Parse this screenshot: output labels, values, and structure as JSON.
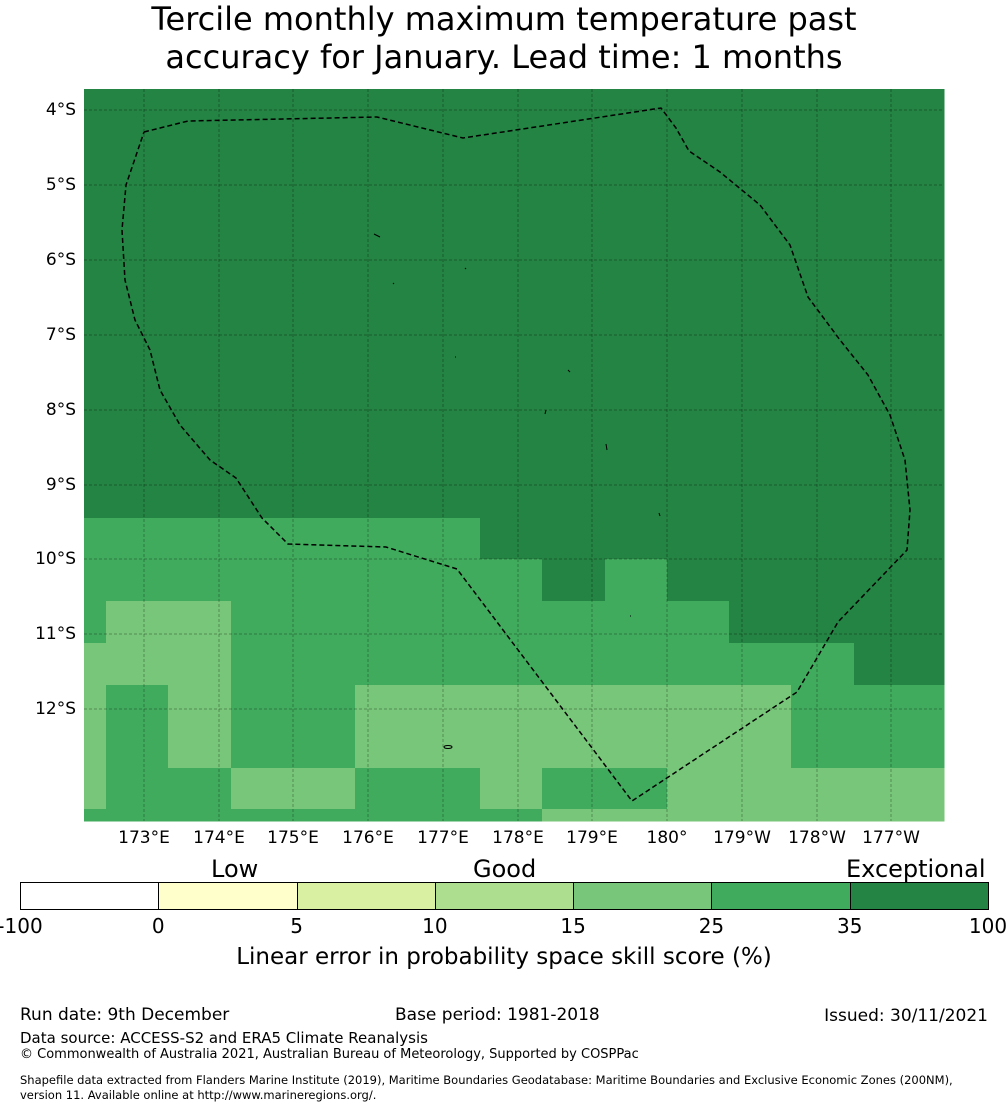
{
  "title_line1": "Tercile monthly maximum temperature past",
  "title_line2": "accuracy for January. Lead time: 1 months",
  "lat_labels": [
    "4°S",
    "5°S",
    "6°S",
    "7°S",
    "8°S",
    "9°S",
    "10°S",
    "11°S",
    "12°S"
  ],
  "lon_labels": [
    "173°E",
    "174°E",
    "175°E",
    "176°E",
    "177°E",
    "178°E",
    "179°E",
    "180°",
    "179°W",
    "178°W",
    "177°W"
  ],
  "skill_grid": {
    "codes": {
      "D": "#238443",
      "M": "#41ab5d",
      "L": "#78c679"
    },
    "rows": [
      "DDDDDDDDDDDDDDD",
      "MMMMMMMDDDDDDDD",
      "MMMMMMMMDMDDDDD",
      "MLLMMMMMMMMDDDD",
      "LLLMMMMMMMMMMDD",
      "LMLMMLLLLLLLMMM",
      "LMLMMLLLLLLLMMM",
      "LMMLLMMLMMLLLLL",
      "MMMMMMMMLLLLLLL"
    ]
  },
  "legend": {
    "categories": [
      "Low",
      "Good",
      "Exceptional"
    ],
    "colors": [
      "#ffffff",
      "#ffffcc",
      "#d9f0a3",
      "#addd8e",
      "#78c679",
      "#41ab5d",
      "#238443"
    ],
    "ticks": [
      "-100",
      "0",
      "5",
      "10",
      "15",
      "25",
      "35",
      "100"
    ],
    "title": "Linear error in probability space skill score (%)"
  },
  "footer": {
    "run_date": "Run date: 9th December",
    "base_period": "Base period: 1981-2018",
    "issued": "Issued: 30/11/2021",
    "data_source": "Data source: ACCESS-S2 and ERA5 Climate Reanalysis",
    "copyright": "© Commonwealth of Australia 2021, Australian Bureau of Meteorology, Supported by COSPPac",
    "shapefile_1": "Shapefile data extracted from Flanders Marine Institute (2019), Maritime Boundaries Geodatabase: Maritime Boundaries and Exclusive Economic Zones (200NM),",
    "shapefile_2": "version 11. Available online at http://www.marineregions.org/."
  }
}
